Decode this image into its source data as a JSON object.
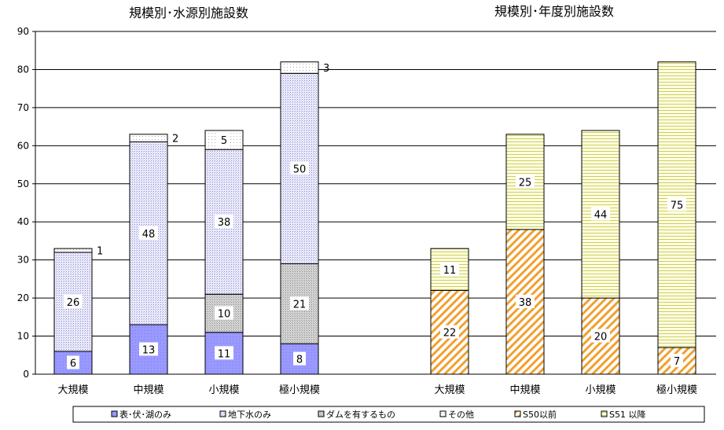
{
  "chart_data": [
    {
      "type": "bar",
      "stacked": true,
      "title": "規模別･水源別施設数",
      "categories": [
        "大規模",
        "中規模",
        "小規模",
        "極小規模"
      ],
      "series": [
        {
          "name": "表･伏･湖のみ",
          "values": [
            6,
            13,
            11,
            8
          ],
          "color": "#9999ff"
        },
        {
          "name": "地下水のみ",
          "values": [
            26,
            48,
            38,
            50
          ],
          "color": "#ccccff"
        },
        {
          "name": "ダムを有するもの",
          "values": [
            0,
            0,
            10,
            21
          ],
          "color": "#d9d9d9"
        },
        {
          "name": "その他",
          "values": [
            1,
            2,
            5,
            3
          ],
          "color": "#ffffff"
        }
      ],
      "ylim": [
        0,
        90
      ],
      "yticks": [
        0,
        10,
        20,
        30,
        40,
        50,
        60,
        70,
        80,
        90
      ],
      "grid": true
    },
    {
      "type": "bar",
      "stacked": true,
      "title": "規模別･年度別施設数",
      "categories": [
        "大規模",
        "中規模",
        "小規模",
        "極小規模"
      ],
      "series": [
        {
          "name": "S50以前",
          "values": [
            22,
            38,
            20,
            7
          ],
          "color": "#ff9933"
        },
        {
          "name": "S51 以降",
          "values": [
            11,
            25,
            44,
            75
          ],
          "color": "#ffff99"
        }
      ],
      "ylim": [
        0,
        90
      ],
      "grid": true
    }
  ],
  "legend": {
    "position": "bottom",
    "items": [
      "表･伏･湖のみ",
      "地下水のみ",
      "ダムを有するもの",
      "その他",
      "S50以前",
      "S51 以降"
    ]
  }
}
